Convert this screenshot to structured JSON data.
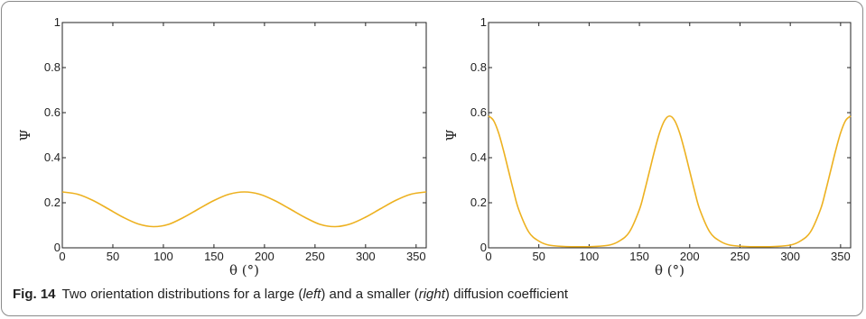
{
  "caption": {
    "label": "Fig. 14",
    "text_1": "Two orientation distributions for a large (",
    "italic_1": "left",
    "text_2": ") and a smaller (",
    "italic_2": "right",
    "text_3": ") diffusion coefficient"
  },
  "colors": {
    "line": "#edb120",
    "axis": "#222222"
  },
  "chart_data": [
    {
      "type": "line",
      "panel": "left",
      "title": "",
      "xlabel": "θ (°)",
      "ylabel": "Ψ",
      "xlim": [
        0,
        360
      ],
      "ylim": [
        0,
        1
      ],
      "x_ticks": [
        0,
        50,
        100,
        150,
        200,
        250,
        300,
        350
      ],
      "y_ticks": [
        0,
        0.2,
        0.4,
        0.6,
        0.8,
        1
      ],
      "y_tick_labels": [
        "0",
        "0.2",
        "0.4",
        "0.6",
        "0.8",
        "1"
      ],
      "grid": false,
      "series": [
        {
          "x": [
            0,
            15,
            30,
            45,
            60,
            75,
            90,
            105,
            120,
            135,
            150,
            165,
            180,
            195,
            210,
            225,
            240,
            255,
            270,
            285,
            300,
            315,
            330,
            345,
            360
          ],
          "values": [
            0.248,
            0.238,
            0.211,
            0.174,
            0.136,
            0.106,
            0.094,
            0.104,
            0.135,
            0.173,
            0.21,
            0.238,
            0.248,
            0.238,
            0.21,
            0.173,
            0.135,
            0.104,
            0.094,
            0.106,
            0.136,
            0.174,
            0.211,
            0.238,
            0.248
          ]
        }
      ]
    },
    {
      "type": "line",
      "panel": "right",
      "title": "",
      "xlabel": "θ (°)",
      "ylabel": "Ψ",
      "xlim": [
        0,
        360
      ],
      "ylim": [
        0,
        1
      ],
      "x_ticks": [
        0,
        50,
        100,
        150,
        200,
        250,
        300,
        350
      ],
      "y_ticks": [
        0,
        0.2,
        0.4,
        0.6,
        0.8,
        1
      ],
      "y_tick_labels": [
        "0",
        "0.2",
        "0.4",
        "0.6",
        "0.8",
        "1"
      ],
      "grid": false,
      "series": [
        {
          "x": [
            0,
            5,
            10,
            15,
            20,
            25,
            30,
            40,
            50,
            60,
            75,
            90,
            105,
            120,
            130,
            140,
            150,
            155,
            160,
            165,
            170,
            175,
            180,
            185,
            190,
            195,
            200,
            205,
            210,
            220,
            230,
            240,
            255,
            270,
            285,
            300,
            310,
            320,
            330,
            335,
            340,
            345,
            350,
            355,
            360
          ],
          "values": [
            0.585,
            0.565,
            0.51,
            0.43,
            0.34,
            0.25,
            0.17,
            0.07,
            0.03,
            0.012,
            0.006,
            0.005,
            0.006,
            0.012,
            0.03,
            0.07,
            0.17,
            0.25,
            0.34,
            0.43,
            0.51,
            0.565,
            0.585,
            0.565,
            0.51,
            0.43,
            0.34,
            0.25,
            0.17,
            0.07,
            0.03,
            0.012,
            0.006,
            0.005,
            0.006,
            0.012,
            0.03,
            0.07,
            0.17,
            0.25,
            0.34,
            0.43,
            0.51,
            0.565,
            0.585
          ]
        }
      ]
    }
  ]
}
